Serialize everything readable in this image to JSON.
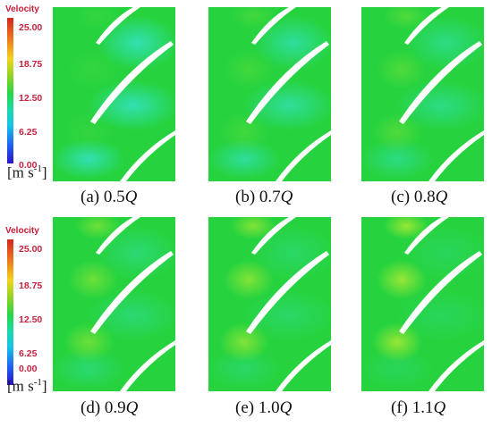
{
  "legend": {
    "title": "Velocity",
    "ticks": [
      "25.00",
      "18.75",
      "12.50",
      "6.25",
      "0.00"
    ],
    "unit_base": "[m s",
    "unit_exp": "-1",
    "unit_close": "]"
  },
  "panels": [
    {
      "label": "(a) 0.5",
      "sym": "Q"
    },
    {
      "label": "(b) 0.7",
      "sym": "Q"
    },
    {
      "label": "(c) 0.8",
      "sym": "Q"
    },
    {
      "label": "(d) 0.9",
      "sym": "Q"
    },
    {
      "label": "(e) 1.0",
      "sym": "Q"
    },
    {
      "label": "(f) 1.1",
      "sym": "Q"
    }
  ],
  "colors": {
    "field": "#26d33f",
    "low": "#33e2c8",
    "high": "#d6f230",
    "blade": "#ffffff"
  }
}
